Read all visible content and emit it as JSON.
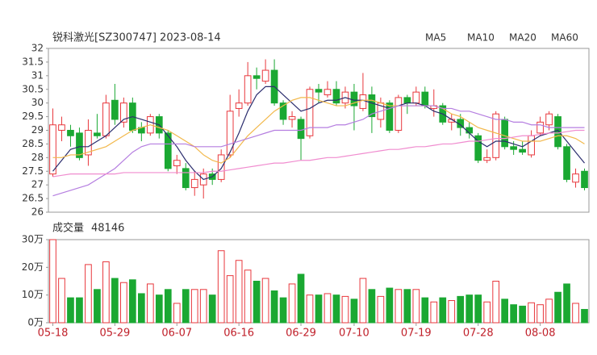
{
  "chart_data": [
    {
      "type": "candlestick",
      "title": "锐科激光[SZ300747] 2023-08-14",
      "up_color": "#e8383d",
      "down_color": "#1aa832",
      "open": [
        27.4,
        29.0,
        29.0,
        28.9,
        28.1,
        28.9,
        28.8,
        30.1,
        29.3,
        30.0,
        29.1,
        28.9,
        29.5,
        28.9,
        27.7,
        27.6,
        26.9,
        27.0,
        27.4,
        27.2,
        28.1,
        29.8,
        30.0,
        31.0,
        30.8,
        31.2,
        30.0,
        29.4,
        29.4,
        28.8,
        30.5,
        30.3,
        30.5,
        30.0,
        30.4,
        29.8,
        30.3,
        29.4,
        30.0,
        29.0,
        30.2,
        30.0,
        30.4,
        29.8,
        29.9,
        29.3,
        29.4,
        29.1,
        28.8,
        27.9,
        28.0,
        29.4,
        28.4,
        28.3,
        28.1,
        28.9,
        29.2,
        29.5,
        28.4,
        27.1,
        27.5
      ],
      "close": [
        29.2,
        29.2,
        28.8,
        28.0,
        29.0,
        28.8,
        30.0,
        29.4,
        30.0,
        29.0,
        28.9,
        29.5,
        28.9,
        27.6,
        27.9,
        26.9,
        27.2,
        27.4,
        27.2,
        28.1,
        29.7,
        30.0,
        31.0,
        30.9,
        31.2,
        30.0,
        29.4,
        29.5,
        28.7,
        30.5,
        30.4,
        30.5,
        30.0,
        30.4,
        29.9,
        30.3,
        29.5,
        30.0,
        29.0,
        30.2,
        30.0,
        30.4,
        29.9,
        29.9,
        29.3,
        29.4,
        29.1,
        28.9,
        27.9,
        28.0,
        29.6,
        28.4,
        28.3,
        28.2,
        28.8,
        29.3,
        29.6,
        28.4,
        27.2,
        27.4,
        26.9
      ],
      "high": [
        29.8,
        29.5,
        29.2,
        29.1,
        29.4,
        29.6,
        30.3,
        30.7,
        30.2,
        30.2,
        29.3,
        29.6,
        29.6,
        29.0,
        28.1,
        27.8,
        27.5,
        27.6,
        27.6,
        28.3,
        30.3,
        30.5,
        31.5,
        31.3,
        31.6,
        31.6,
        30.1,
        29.7,
        29.5,
        30.6,
        30.7,
        30.8,
        30.8,
        30.6,
        30.7,
        31.1,
        30.6,
        30.2,
        30.1,
        30.3,
        30.3,
        30.6,
        30.6,
        30.5,
        30.0,
        29.6,
        29.6,
        29.3,
        28.9,
        28.3,
        29.7,
        29.5,
        28.6,
        28.6,
        29.0,
        29.5,
        29.7,
        29.6,
        28.5,
        27.6,
        27.6
      ],
      "low": [
        27.3,
        28.6,
        28.4,
        27.9,
        27.7,
        28.7,
        28.7,
        29.2,
        29.1,
        28.9,
        28.6,
        28.8,
        28.7,
        27.5,
        27.4,
        26.8,
        26.6,
        26.5,
        27.0,
        27.1,
        28.0,
        29.5,
        29.9,
        30.5,
        30.7,
        29.9,
        29.2,
        29.1,
        27.9,
        28.7,
        30.0,
        30.2,
        29.9,
        29.8,
        29.0,
        29.7,
        28.9,
        29.1,
        28.9,
        28.9,
        29.6,
        29.9,
        29.8,
        29.5,
        29.2,
        29.0,
        28.8,
        28.7,
        27.8,
        27.8,
        27.9,
        28.3,
        28.1,
        28.1,
        28.0,
        28.8,
        29.0,
        28.3,
        27.1,
        26.9,
        26.8
      ],
      "series": [
        {
          "name": "MA5",
          "color": "#2b2d6e",
          "values": [
            27.5,
            27.9,
            28.3,
            28.4,
            28.4,
            28.6,
            28.8,
            29.1,
            29.4,
            29.5,
            29.4,
            29.3,
            29.2,
            28.8,
            28.4,
            27.9,
            27.5,
            27.2,
            27.3,
            27.6,
            28.2,
            28.9,
            29.7,
            30.3,
            30.6,
            30.6,
            30.3,
            30.0,
            29.7,
            29.8,
            30.0,
            30.1,
            30.1,
            30.2,
            30.1,
            30.1,
            30.0,
            29.9,
            29.8,
            29.9,
            30.0,
            30.0,
            29.9,
            29.7,
            29.6,
            29.4,
            29.2,
            28.9,
            28.6,
            28.4,
            28.6,
            28.6,
            28.5,
            28.4,
            28.6,
            28.8,
            28.9,
            29.0,
            28.6,
            28.2,
            27.8
          ]
        },
        {
          "name": "MA10",
          "color": "#f2b84b",
          "values": [
            28.0,
            28.0,
            28.1,
            28.1,
            28.2,
            28.3,
            28.4,
            28.6,
            28.8,
            29.0,
            29.1,
            29.2,
            29.1,
            29.0,
            28.8,
            28.6,
            28.4,
            28.1,
            27.9,
            27.8,
            28.0,
            28.4,
            28.8,
            29.1,
            29.4,
            29.7,
            29.9,
            30.1,
            30.2,
            30.2,
            30.1,
            30.0,
            29.9,
            29.9,
            30.0,
            30.1,
            30.1,
            30.0,
            29.9,
            29.9,
            29.9,
            29.9,
            29.9,
            29.9,
            29.8,
            29.6,
            29.5,
            29.3,
            29.1,
            29.0,
            28.9,
            28.8,
            28.7,
            28.6,
            28.6,
            28.6,
            28.7,
            28.8,
            28.8,
            28.7,
            28.5
          ]
        },
        {
          "name": "MA20",
          "color": "#b57ee0",
          "values": [
            26.6,
            26.7,
            26.8,
            26.9,
            27.0,
            27.2,
            27.4,
            27.6,
            27.9,
            28.2,
            28.4,
            28.5,
            28.5,
            28.5,
            28.5,
            28.5,
            28.4,
            28.4,
            28.4,
            28.4,
            28.5,
            28.6,
            28.7,
            28.8,
            28.9,
            29.0,
            29.0,
            29.0,
            29.0,
            29.1,
            29.1,
            29.1,
            29.2,
            29.2,
            29.3,
            29.4,
            29.6,
            29.7,
            29.8,
            29.9,
            29.9,
            29.9,
            29.9,
            29.9,
            29.8,
            29.8,
            29.7,
            29.7,
            29.6,
            29.5,
            29.4,
            29.4,
            29.3,
            29.3,
            29.2,
            29.2,
            29.1,
            29.1,
            29.1,
            29.1,
            29.1
          ]
        },
        {
          "name": "MA60",
          "color": "#f08ccf",
          "values": [
            27.3,
            27.35,
            27.4,
            27.4,
            27.4,
            27.4,
            27.4,
            27.4,
            27.45,
            27.45,
            27.45,
            27.45,
            27.45,
            27.45,
            27.45,
            27.45,
            27.45,
            27.45,
            27.5,
            27.5,
            27.55,
            27.6,
            27.65,
            27.7,
            27.75,
            27.8,
            27.8,
            27.85,
            27.9,
            27.9,
            27.95,
            28.0,
            28.0,
            28.05,
            28.1,
            28.15,
            28.2,
            28.25,
            28.3,
            28.3,
            28.35,
            28.4,
            28.4,
            28.45,
            28.5,
            28.5,
            28.55,
            28.6,
            28.6,
            28.65,
            28.7,
            28.7,
            28.75,
            28.8,
            28.8,
            28.85,
            28.9,
            28.9,
            28.95,
            29.0,
            29.0
          ]
        }
      ],
      "ylim": [
        26,
        32
      ],
      "yticks": [
        26,
        26.5,
        27,
        27.5,
        28,
        28.5,
        29,
        29.5,
        30,
        30.5,
        31,
        31.5,
        32
      ]
    },
    {
      "type": "bar",
      "title": "成交量",
      "categories": [
        "05-18",
        null,
        null,
        null,
        null,
        null,
        null,
        "05-29",
        null,
        null,
        null,
        null,
        null,
        null,
        "06-07",
        null,
        null,
        null,
        null,
        null,
        null,
        "06-16",
        null,
        null,
        null,
        null,
        null,
        null,
        "06-29",
        null,
        null,
        null,
        null,
        null,
        "07-10",
        null,
        null,
        null,
        null,
        null,
        null,
        "07-19",
        null,
        null,
        null,
        null,
        null,
        null,
        "07-28",
        null,
        null,
        null,
        null,
        null,
        null,
        "08-08",
        null,
        null,
        null,
        null,
        null
      ],
      "values": [
        300000,
        160000,
        90000,
        90000,
        210000,
        120000,
        220000,
        160000,
        145000,
        155000,
        105000,
        140000,
        100000,
        120000,
        70000,
        120000,
        120000,
        120000,
        100000,
        260000,
        170000,
        225000,
        190000,
        150000,
        160000,
        115000,
        90000,
        140000,
        175000,
        100000,
        100000,
        105000,
        100000,
        95000,
        85000,
        160000,
        120000,
        95000,
        125000,
        120000,
        120000,
        120000,
        90000,
        75000,
        90000,
        80000,
        95000,
        100000,
        100000,
        75000,
        150000,
        85000,
        65000,
        60000,
        72000,
        65000,
        85000,
        110000,
        140000,
        70000,
        48146
      ],
      "ylim": [
        0,
        300000
      ],
      "yticks": [
        {
          "value": 0,
          "label": "0万"
        },
        {
          "value": 100000,
          "label": "10万"
        },
        {
          "value": 200000,
          "label": "20万"
        },
        {
          "value": 300000,
          "label": "30万"
        }
      ]
    }
  ]
}
